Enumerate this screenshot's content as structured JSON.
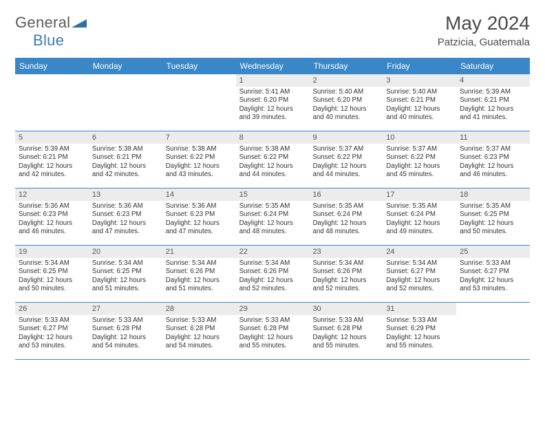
{
  "brand": {
    "part1": "General",
    "part2": "Blue"
  },
  "title": {
    "month": "May 2024",
    "location": "Patzicia, Guatemala"
  },
  "colors": {
    "header_bg": "#3a87c7",
    "header_text": "#ffffff",
    "daynum_bg": "#ececec",
    "rule": "#3a87c7",
    "text": "#3a3a3a"
  },
  "weekdays": [
    "Sunday",
    "Monday",
    "Tuesday",
    "Wednesday",
    "Thursday",
    "Friday",
    "Saturday"
  ],
  "weeks": [
    [
      {
        "n": "",
        "sr": "",
        "ss": "",
        "dl": ""
      },
      {
        "n": "",
        "sr": "",
        "ss": "",
        "dl": ""
      },
      {
        "n": "",
        "sr": "",
        "ss": "",
        "dl": ""
      },
      {
        "n": "1",
        "sr": "5:41 AM",
        "ss": "6:20 PM",
        "dl": "12 hours and 39 minutes."
      },
      {
        "n": "2",
        "sr": "5:40 AM",
        "ss": "6:20 PM",
        "dl": "12 hours and 40 minutes."
      },
      {
        "n": "3",
        "sr": "5:40 AM",
        "ss": "6:21 PM",
        "dl": "12 hours and 40 minutes."
      },
      {
        "n": "4",
        "sr": "5:39 AM",
        "ss": "6:21 PM",
        "dl": "12 hours and 41 minutes."
      }
    ],
    [
      {
        "n": "5",
        "sr": "5:39 AM",
        "ss": "6:21 PM",
        "dl": "12 hours and 42 minutes."
      },
      {
        "n": "6",
        "sr": "5:38 AM",
        "ss": "6:21 PM",
        "dl": "12 hours and 42 minutes."
      },
      {
        "n": "7",
        "sr": "5:38 AM",
        "ss": "6:22 PM",
        "dl": "12 hours and 43 minutes."
      },
      {
        "n": "8",
        "sr": "5:38 AM",
        "ss": "6:22 PM",
        "dl": "12 hours and 44 minutes."
      },
      {
        "n": "9",
        "sr": "5:37 AM",
        "ss": "6:22 PM",
        "dl": "12 hours and 44 minutes."
      },
      {
        "n": "10",
        "sr": "5:37 AM",
        "ss": "6:22 PM",
        "dl": "12 hours and 45 minutes."
      },
      {
        "n": "11",
        "sr": "5:37 AM",
        "ss": "6:23 PM",
        "dl": "12 hours and 46 minutes."
      }
    ],
    [
      {
        "n": "12",
        "sr": "5:36 AM",
        "ss": "6:23 PM",
        "dl": "12 hours and 46 minutes."
      },
      {
        "n": "13",
        "sr": "5:36 AM",
        "ss": "6:23 PM",
        "dl": "12 hours and 47 minutes."
      },
      {
        "n": "14",
        "sr": "5:36 AM",
        "ss": "6:23 PM",
        "dl": "12 hours and 47 minutes."
      },
      {
        "n": "15",
        "sr": "5:35 AM",
        "ss": "6:24 PM",
        "dl": "12 hours and 48 minutes."
      },
      {
        "n": "16",
        "sr": "5:35 AM",
        "ss": "6:24 PM",
        "dl": "12 hours and 48 minutes."
      },
      {
        "n": "17",
        "sr": "5:35 AM",
        "ss": "6:24 PM",
        "dl": "12 hours and 49 minutes."
      },
      {
        "n": "18",
        "sr": "5:35 AM",
        "ss": "6:25 PM",
        "dl": "12 hours and 50 minutes."
      }
    ],
    [
      {
        "n": "19",
        "sr": "5:34 AM",
        "ss": "6:25 PM",
        "dl": "12 hours and 50 minutes."
      },
      {
        "n": "20",
        "sr": "5:34 AM",
        "ss": "6:25 PM",
        "dl": "12 hours and 51 minutes."
      },
      {
        "n": "21",
        "sr": "5:34 AM",
        "ss": "6:26 PM",
        "dl": "12 hours and 51 minutes."
      },
      {
        "n": "22",
        "sr": "5:34 AM",
        "ss": "6:26 PM",
        "dl": "12 hours and 52 minutes."
      },
      {
        "n": "23",
        "sr": "5:34 AM",
        "ss": "6:26 PM",
        "dl": "12 hours and 52 minutes."
      },
      {
        "n": "24",
        "sr": "5:34 AM",
        "ss": "6:27 PM",
        "dl": "12 hours and 52 minutes."
      },
      {
        "n": "25",
        "sr": "5:33 AM",
        "ss": "6:27 PM",
        "dl": "12 hours and 53 minutes."
      }
    ],
    [
      {
        "n": "26",
        "sr": "5:33 AM",
        "ss": "6:27 PM",
        "dl": "12 hours and 53 minutes."
      },
      {
        "n": "27",
        "sr": "5:33 AM",
        "ss": "6:28 PM",
        "dl": "12 hours and 54 minutes."
      },
      {
        "n": "28",
        "sr": "5:33 AM",
        "ss": "6:28 PM",
        "dl": "12 hours and 54 minutes."
      },
      {
        "n": "29",
        "sr": "5:33 AM",
        "ss": "6:28 PM",
        "dl": "12 hours and 55 minutes."
      },
      {
        "n": "30",
        "sr": "5:33 AM",
        "ss": "6:28 PM",
        "dl": "12 hours and 55 minutes."
      },
      {
        "n": "31",
        "sr": "5:33 AM",
        "ss": "6:29 PM",
        "dl": "12 hours and 55 minutes."
      },
      {
        "n": "",
        "sr": "",
        "ss": "",
        "dl": ""
      }
    ]
  ],
  "labels": {
    "sunrise": "Sunrise: ",
    "sunset": "Sunset: ",
    "daylight": "Daylight: "
  }
}
